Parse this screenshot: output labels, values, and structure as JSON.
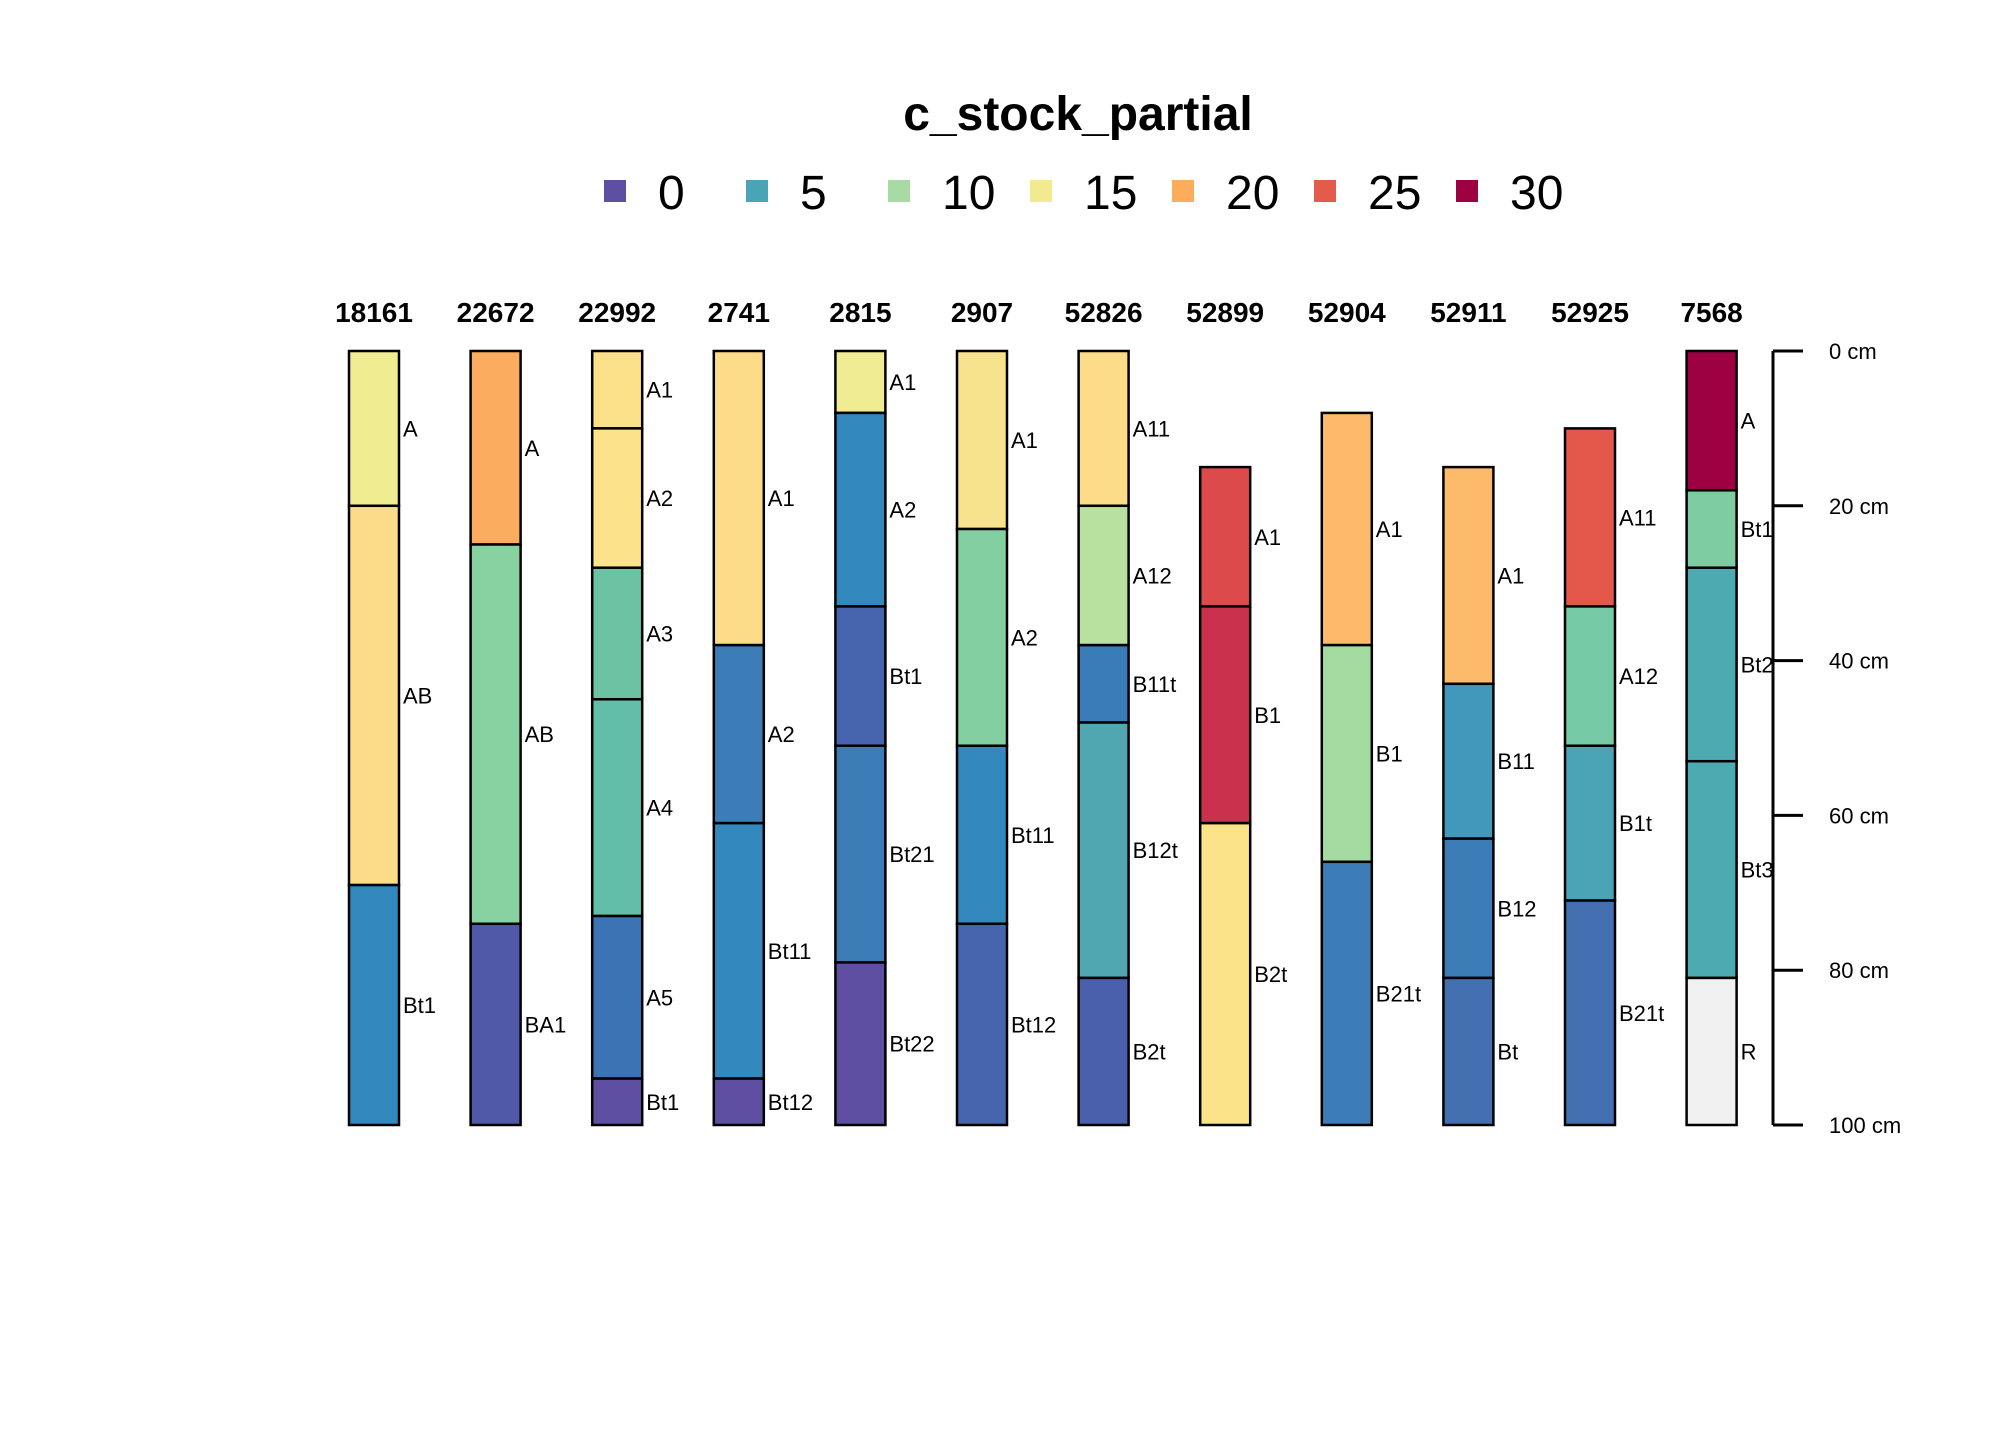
{
  "chart_data": {
    "type": "soil-profile",
    "title": "c_stock_partial",
    "legend": {
      "items": [
        {
          "label": "0",
          "color": "#5E4FA2"
        },
        {
          "label": "5",
          "color": "#4BA4B5"
        },
        {
          "label": "10",
          "color": "#A8DBA3"
        },
        {
          "label": "15",
          "color": "#F1EA8F"
        },
        {
          "label": "20",
          "color": "#FBAC5D"
        },
        {
          "label": "25",
          "color": "#E25B4B"
        },
        {
          "label": "30",
          "color": "#9E0142"
        }
      ]
    },
    "depth_axis": {
      "ticks": [
        0,
        20,
        40,
        60,
        80,
        100
      ],
      "labels": [
        "0 cm",
        "20 cm",
        "40 cm",
        "60 cm",
        "80 cm",
        "100 cm"
      ],
      "range": [
        0,
        100
      ]
    },
    "profiles": [
      {
        "id": "18161",
        "horizons": [
          {
            "name": "A",
            "top": 0,
            "bottom": 20,
            "color": "#EFEC91"
          },
          {
            "name": "AB",
            "top": 20,
            "bottom": 69,
            "color": "#FCDC88"
          },
          {
            "name": "Bt1",
            "top": 69,
            "bottom": 100,
            "color": "#3388BD"
          }
        ]
      },
      {
        "id": "22672",
        "horizons": [
          {
            "name": "A",
            "top": 0,
            "bottom": 25,
            "color": "#FCAC5E"
          },
          {
            "name": "AB",
            "top": 25,
            "bottom": 74,
            "color": "#88D1A1"
          },
          {
            "name": "BA1",
            "top": 74,
            "bottom": 100,
            "color": "#5058A8"
          }
        ]
      },
      {
        "id": "22992",
        "horizons": [
          {
            "name": "A1",
            "top": 0,
            "bottom": 10,
            "color": "#FCDF89"
          },
          {
            "name": "A2",
            "top": 10,
            "bottom": 28,
            "color": "#FCE28A"
          },
          {
            "name": "A3",
            "top": 28,
            "bottom": 45,
            "color": "#6CC3A3"
          },
          {
            "name": "A4",
            "top": 45,
            "bottom": 73,
            "color": "#63BEA7"
          },
          {
            "name": "A5",
            "top": 73,
            "bottom": 94,
            "color": "#3C73B5"
          },
          {
            "name": "Bt1",
            "top": 94,
            "bottom": 100,
            "color": "#5E4FA2"
          }
        ]
      },
      {
        "id": "2741",
        "horizons": [
          {
            "name": "A1",
            "top": 0,
            "bottom": 38,
            "color": "#FCDC88"
          },
          {
            "name": "A2",
            "top": 38,
            "bottom": 61,
            "color": "#3C7DB7"
          },
          {
            "name": "Bt11",
            "top": 61,
            "bottom": 94,
            "color": "#3388BD"
          },
          {
            "name": "Bt12",
            "top": 94,
            "bottom": 100,
            "color": "#5E4FA2"
          }
        ]
      },
      {
        "id": "2815",
        "horizons": [
          {
            "name": "A1",
            "top": 0,
            "bottom": 8,
            "color": "#F0EC94"
          },
          {
            "name": "A2",
            "top": 8,
            "bottom": 33,
            "color": "#3388BD"
          },
          {
            "name": "Bt1",
            "top": 33,
            "bottom": 51,
            "color": "#4765AF"
          },
          {
            "name": "Bt21",
            "top": 51,
            "bottom": 79,
            "color": "#3C7DB7"
          },
          {
            "name": "Bt22",
            "top": 79,
            "bottom": 100,
            "color": "#5E4FA2"
          }
        ]
      },
      {
        "id": "2907",
        "horizons": [
          {
            "name": "A1",
            "top": 0,
            "bottom": 23,
            "color": "#F7E38D"
          },
          {
            "name": "A2",
            "top": 23,
            "bottom": 51,
            "color": "#84CFA2"
          },
          {
            "name": "Bt11",
            "top": 51,
            "bottom": 74,
            "color": "#3388BD"
          },
          {
            "name": "Bt12",
            "top": 74,
            "bottom": 100,
            "color": "#4765AF"
          }
        ]
      },
      {
        "id": "52826",
        "horizons": [
          {
            "name": "A11",
            "top": 0,
            "bottom": 20,
            "color": "#FCDC88"
          },
          {
            "name": "A12",
            "top": 20,
            "bottom": 38,
            "color": "#B8E19F"
          },
          {
            "name": "B11t",
            "top": 38,
            "bottom": 48,
            "color": "#3A7CB8"
          },
          {
            "name": "B12t",
            "top": 48,
            "bottom": 81,
            "color": "#50A7B2"
          },
          {
            "name": "B2t",
            "top": 81,
            "bottom": 100,
            "color": "#4B60AC"
          }
        ]
      },
      {
        "id": "52899",
        "horizons": [
          {
            "name": "A1",
            "top": 15,
            "bottom": 33,
            "color": "#DC4A4C"
          },
          {
            "name": "B1",
            "top": 33,
            "bottom": 61,
            "color": "#C9314C"
          },
          {
            "name": "B2t",
            "top": 61,
            "bottom": 100,
            "color": "#FBE38A"
          }
        ]
      },
      {
        "id": "52904",
        "horizons": [
          {
            "name": "A1",
            "top": 8,
            "bottom": 38,
            "color": "#FDBA6B"
          },
          {
            "name": "B1",
            "top": 38,
            "bottom": 66,
            "color": "#A4DBA0"
          },
          {
            "name": "B21t",
            "top": 66,
            "bottom": 100,
            "color": "#3C7DB7"
          }
        ]
      },
      {
        "id": "52911",
        "horizons": [
          {
            "name": "A1",
            "top": 15,
            "bottom": 43,
            "color": "#FDBA6B"
          },
          {
            "name": "B11",
            "top": 43,
            "bottom": 63,
            "color": "#4198BA"
          },
          {
            "name": "B12",
            "top": 63,
            "bottom": 81,
            "color": "#3C7DB7"
          },
          {
            "name": "Bt",
            "top": 81,
            "bottom": 100,
            "color": "#4470B2"
          }
        ]
      },
      {
        "id": "52925",
        "horizons": [
          {
            "name": "A11",
            "top": 10,
            "bottom": 33,
            "color": "#E3584B"
          },
          {
            "name": "A12",
            "top": 33,
            "bottom": 51,
            "color": "#76CAA5"
          },
          {
            "name": "B1t",
            "top": 51,
            "bottom": 71,
            "color": "#4BA4B5"
          },
          {
            "name": "B21t",
            "top": 71,
            "bottom": 100,
            "color": "#4470B2"
          }
        ]
      },
      {
        "id": "7568",
        "horizons": [
          {
            "name": "A",
            "top": 0,
            "bottom": 18,
            "color": "#9E0142"
          },
          {
            "name": "Bt1",
            "top": 18,
            "bottom": 28,
            "color": "#7ECCA1"
          },
          {
            "name": "Bt2",
            "top": 28,
            "bottom": 53,
            "color": "#4EAAB1"
          },
          {
            "name": "Bt3",
            "top": 53,
            "bottom": 81,
            "color": "#4EAAB1"
          },
          {
            "name": "R",
            "top": 81,
            "bottom": 100,
            "color": "#F0F0F0"
          }
        ]
      }
    ]
  }
}
